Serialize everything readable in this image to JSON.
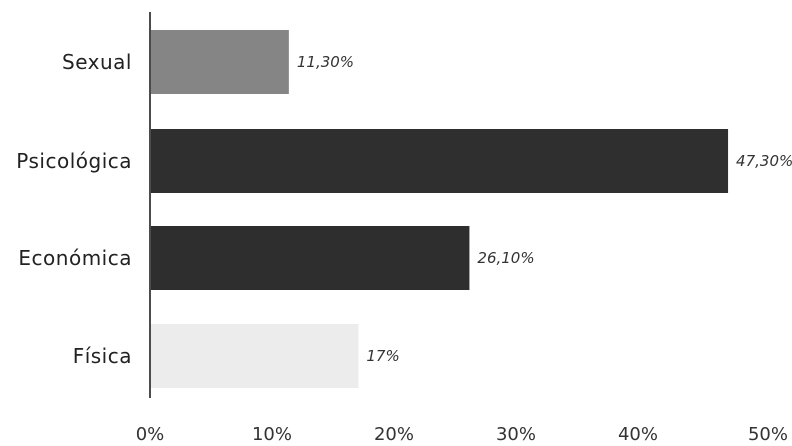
{
  "chart_data": {
    "type": "bar",
    "orientation": "horizontal",
    "categories": [
      "Sexual",
      "Psicológica",
      "Económica",
      "Física"
    ],
    "values": [
      11.3,
      47.3,
      26.1,
      17
    ],
    "value_labels": [
      "11,30%",
      "47,30%",
      "26,10%",
      "17%"
    ],
    "bar_colors": [
      "#858585",
      "#2f2f2f",
      "#2e2e2e",
      "#ececec"
    ],
    "xlim": [
      0,
      50
    ],
    "x_ticks": [
      0,
      10,
      20,
      30,
      40,
      50
    ],
    "x_tick_labels": [
      "0%",
      "10%",
      "20%",
      "30%",
      "40%",
      "50%"
    ],
    "title": "",
    "xlabel": "",
    "ylabel": "",
    "grid": false,
    "legend": "none"
  }
}
